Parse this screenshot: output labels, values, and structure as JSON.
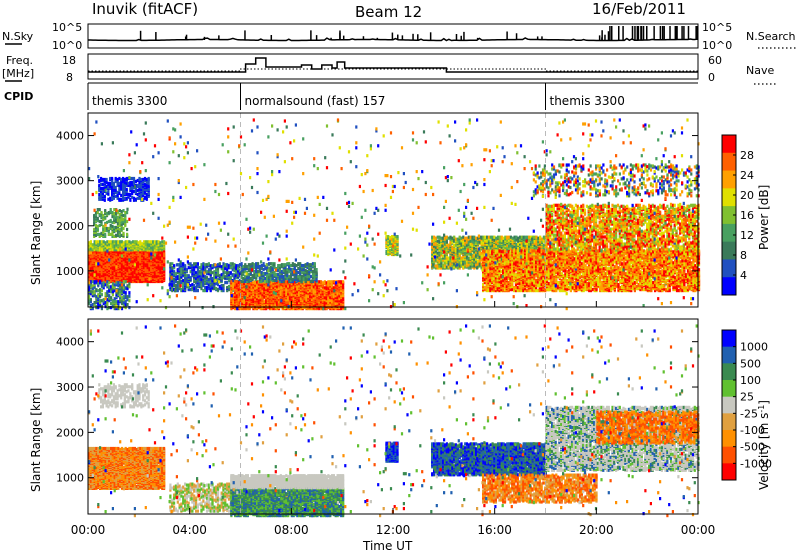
{
  "header": {
    "station": "Inuvik (fitACF)",
    "beam": "Beam 12",
    "date": "16/Feb/2011"
  },
  "top_panels": {
    "nsky_label": "N.Sky",
    "nsky_ticks": [
      "10^5",
      "10^0"
    ],
    "nsearch_label": "N.Search",
    "nsearch_ticks": [
      "10^5",
      "10^0"
    ],
    "freq_label_line1": "Freq.",
    "freq_label_line2": "[MHz]",
    "freq_ticks": [
      "18",
      "8"
    ],
    "nave_label": "Nave",
    "nave_ticks": [
      "60",
      "0"
    ],
    "cpid_label": "CPID",
    "cpid_segments": [
      {
        "name": "themis 3300",
        "start_hour": 0,
        "end_hour": 6
      },
      {
        "name": "normalsound (fast) 157",
        "start_hour": 6,
        "end_hour": 18
      },
      {
        "name": "themis 3300",
        "start_hour": 18,
        "end_hour": 24
      }
    ]
  },
  "colors": {
    "power": [
      "#0000ff",
      "#2050c0",
      "#3a7a5a",
      "#48a060",
      "#80c030",
      "#e0e000",
      "#ffa000",
      "#ff6000",
      "#ff0000"
    ],
    "velocity": [
      "#ff0000",
      "#ff5000",
      "#ff9000",
      "#e0a040",
      "#c8c8c0",
      "#60c030",
      "#3a8a50",
      "#2060b0",
      "#0000ff"
    ],
    "gray": "#c8c8c0"
  },
  "chart_data": [
    {
      "type": "heatmap",
      "name": "power",
      "ylabel": "Slant Range [km]",
      "xlabel": "",
      "y_ticks": [
        "1000",
        "2000",
        "3000",
        "4000"
      ],
      "ylim": [
        200,
        4500
      ],
      "colorbar_label": "Power [dB]",
      "colorbar_ticks": [
        "4",
        "8",
        "12",
        "16",
        "20",
        "24",
        "28"
      ],
      "x_ticks": [
        "00:00",
        "04:00",
        "08:00",
        "12:00",
        "16:00",
        "20:00",
        "00:00"
      ],
      "xlim_hours": [
        0,
        24
      ]
    },
    {
      "type": "heatmap",
      "name": "velocity",
      "ylabel": "Slant Range [km]",
      "y_ticks": [
        "1000",
        "2000",
        "3000",
        "4000"
      ],
      "ylim": [
        200,
        4500
      ],
      "colorbar_label": "Velocity [m s",
      "colorbar_label_sup": "-1",
      "colorbar_ticks": [
        "1000",
        "500",
        "100",
        "25",
        "-25",
        "-100",
        "-500",
        "-1000"
      ],
      "x_ticks": [
        "00:00",
        "04:00",
        "08:00",
        "12:00",
        "16:00",
        "20:00",
        "00:00"
      ],
      "xlabel": "Time UT",
      "xlim_hours": [
        0,
        24
      ]
    }
  ]
}
